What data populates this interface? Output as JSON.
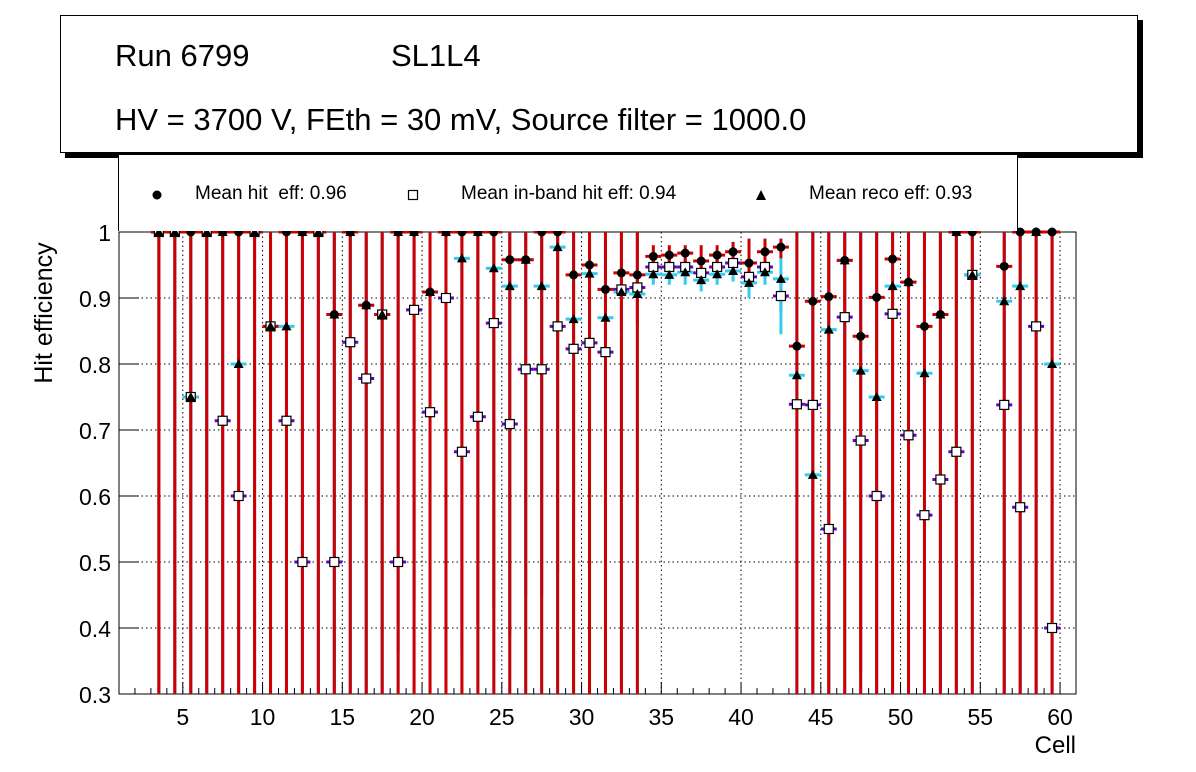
{
  "chart_data": {
    "type": "scatter",
    "title_lines": [
      "Run 6799",
      "SL1L4",
      "HV = 3700 V, FEth = 30 mV, Source filter = 1000.0"
    ],
    "xlabel": "Cell",
    "ylabel": "Hit efficiency",
    "xlim": [
      1,
      61
    ],
    "ylim": [
      0.3,
      1.0
    ],
    "xticks": [
      5,
      10,
      15,
      20,
      25,
      30,
      35,
      40,
      45,
      50,
      55,
      60
    ],
    "yticks": [
      0.3,
      0.4,
      0.5,
      0.6,
      0.7,
      0.8,
      0.9,
      1.0
    ],
    "ytick_labels": [
      "0.3",
      "0.4",
      "0.5",
      "0.6",
      "0.7",
      "0.8",
      "0.9",
      "1"
    ],
    "grid": true,
    "legend_position": "top",
    "legend": [
      {
        "label": "Mean hit  eff: 0.96",
        "marker": "circle"
      },
      {
        "label": "Mean in-band hit eff: 0.94",
        "marker": "open-square"
      },
      {
        "label": "Mean reco eff: 0.93",
        "marker": "triangle"
      }
    ],
    "colors": {
      "hit_err": "#cc0000",
      "inband_err": "#6600cc",
      "reco_err": "#33ccee",
      "marker": "#000000"
    },
    "cells": [
      3,
      4,
      5,
      6,
      7,
      8,
      9,
      10,
      11,
      12,
      13,
      14,
      15,
      16,
      17,
      18,
      19,
      20,
      21,
      22,
      23,
      24,
      25,
      26,
      27,
      28,
      29,
      30,
      31,
      32,
      33,
      34,
      35,
      36,
      37,
      38,
      39,
      40,
      41,
      42,
      43,
      44,
      45,
      46,
      47,
      48,
      49,
      50,
      51,
      52,
      53,
      54,
      56,
      57,
      58,
      59
    ],
    "series": [
      {
        "name": "hit",
        "values": [
          1,
          1,
          1,
          1,
          1,
          1,
          1,
          0.857,
          1,
          1,
          1,
          0.875,
          1,
          0.889,
          0.875,
          1,
          1,
          0.909,
          1,
          1,
          1,
          1,
          0.958,
          0.958,
          1,
          1,
          0.935,
          0.95,
          0.913,
          0.938,
          0.935,
          0.963,
          0.965,
          0.968,
          0.956,
          0.965,
          0.97,
          0.953,
          0.97,
          0.977,
          0.827,
          0.895,
          0.902,
          0.957,
          0.842,
          0.901,
          0.959,
          0.924,
          0.857,
          0.875,
          1,
          1,
          0.948,
          1,
          1,
          1
        ],
        "err_lo": [
          0.3,
          0.3,
          0.3,
          0.3,
          0.3,
          0.3,
          0.3,
          0.3,
          0.3,
          0.3,
          0.3,
          0.3,
          0.3,
          0.3,
          0.3,
          0.3,
          0.3,
          0.3,
          0.3,
          0.3,
          0.3,
          0.3,
          0.3,
          0.3,
          0.3,
          0.3,
          0.3,
          0.3,
          0.3,
          0.3,
          0.3,
          0.945,
          0.945,
          0.945,
          0.93,
          0.945,
          0.95,
          0.93,
          0.95,
          0.96,
          0.3,
          0.3,
          0.3,
          0.3,
          0.3,
          0.3,
          0.3,
          0.3,
          0.3,
          0.3,
          0.3,
          0.3,
          0.3,
          0.3,
          0.3,
          0.3
        ],
        "err_hi": [
          1,
          1,
          1,
          1,
          1,
          1,
          1,
          1,
          1,
          1,
          1,
          1,
          1,
          1,
          1,
          1,
          1,
          1,
          1,
          1,
          1,
          1,
          1,
          1,
          1,
          1,
          1,
          1,
          1,
          1,
          1,
          0.98,
          0.98,
          0.98,
          0.98,
          0.98,
          0.985,
          0.99,
          0.99,
          0.99,
          1,
          1,
          1,
          1,
          1,
          1,
          1,
          1,
          1,
          1,
          1,
          1,
          1,
          1,
          1,
          1
        ]
      },
      {
        "name": "in-band hit",
        "values": [
          1,
          1,
          0.75,
          1,
          0.714,
          0.6,
          1,
          0.857,
          0.714,
          0.5,
          1,
          0.5,
          0.833,
          0.778,
          0.875,
          0.5,
          0.882,
          0.727,
          0.9,
          0.667,
          0.72,
          0.862,
          0.709,
          0.792,
          0.792,
          0.857,
          0.823,
          0.832,
          0.818,
          0.913,
          0.916,
          0.947,
          0.947,
          0.947,
          0.938,
          0.947,
          0.953,
          0.932,
          0.947,
          0.903,
          0.739,
          0.738,
          0.55,
          0.871,
          0.684,
          0.6,
          0.876,
          0.692,
          0.571,
          0.625,
          0.667,
          0.935,
          0.738,
          0.583,
          0.857,
          0.4
        ],
        "err_lo": [
          0.3,
          0.3,
          0.3,
          0.3,
          0.3,
          0.3,
          0.3,
          0.3,
          0.3,
          0.3,
          0.3,
          0.3,
          0.3,
          0.3,
          0.3,
          0.365,
          0.44,
          0.3,
          0.315,
          0.36,
          0.405,
          0.43,
          0.39,
          0.45,
          0.45,
          0.485,
          0.565,
          0.635,
          0.63,
          0.85,
          0.86,
          0.935,
          0.935,
          0.935,
          0.925,
          0.935,
          0.94,
          0.92,
          0.935,
          0.88,
          0.75,
          0.3,
          0.3,
          0.495,
          0.335,
          0.3,
          0.53,
          0.3,
          0.3,
          0.3,
          0.3,
          0.445,
          0.3,
          0.3,
          0.3,
          0.3
        ],
        "err_hi": [
          1,
          1,
          1,
          1,
          1,
          1,
          1,
          1,
          1,
          1,
          1,
          1,
          1,
          1,
          1,
          1,
          1,
          1,
          1,
          1,
          1,
          1,
          1,
          1,
          1,
          1,
          1,
          1,
          1,
          1,
          1,
          0.96,
          0.96,
          0.96,
          0.955,
          0.96,
          0.965,
          0.95,
          0.96,
          0.93,
          0.75,
          1,
          1,
          1,
          1,
          1,
          1,
          1,
          1,
          1,
          1,
          1,
          1,
          1,
          1,
          1
        ]
      },
      {
        "name": "reco",
        "values": [
          1,
          1,
          0.75,
          1,
          1,
          0.8,
          1,
          0.857,
          0.857,
          1,
          1,
          0.875,
          1,
          0.889,
          0.875,
          1,
          1,
          0.909,
          1,
          0.96,
          1,
          0.945,
          0.918,
          0.958,
          0.918,
          0.977,
          0.868,
          0.937,
          0.87,
          0.909,
          0.906,
          0.936,
          0.935,
          0.939,
          0.927,
          0.936,
          0.941,
          0.923,
          0.939,
          0.929,
          0.783,
          0.632,
          0.852,
          0.957,
          0.79,
          0.75,
          0.918,
          0.924,
          0.786,
          0.875,
          1,
          0.935,
          0.895,
          0.918,
          1,
          0.8
        ],
        "err_lo": [
          0.3,
          0.3,
          0.3,
          0.3,
          0.3,
          0.3,
          0.3,
          0.3,
          0.3,
          0.3,
          0.3,
          0.3,
          0.3,
          0.3,
          0.3,
          0.3,
          0.3,
          0.3,
          0.3,
          0.3,
          0.3,
          0.3,
          0.3,
          0.3,
          0.3,
          0.3,
          0.3,
          0.3,
          0.3,
          0.3,
          0.3,
          0.92,
          0.92,
          0.92,
          0.91,
          0.92,
          0.925,
          0.9,
          0.92,
          0.845,
          0.3,
          0.3,
          0.3,
          0.3,
          0.3,
          0.3,
          0.3,
          0.3,
          0.3,
          0.3,
          0.3,
          0.3,
          0.3,
          0.3,
          0.3,
          0.3
        ],
        "err_hi": [
          1,
          1,
          1,
          1,
          1,
          1,
          1,
          1,
          1,
          1,
          1,
          1,
          1,
          1,
          1,
          1,
          1,
          1,
          1,
          1,
          1,
          1,
          1,
          1,
          1,
          1,
          1,
          1,
          1,
          1,
          1,
          0.95,
          0.95,
          0.95,
          0.94,
          0.95,
          0.955,
          0.94,
          0.955,
          0.96,
          1,
          1,
          1,
          1,
          1,
          1,
          1,
          1,
          1,
          1,
          1,
          1,
          1,
          1,
          1,
          1
        ]
      }
    ]
  }
}
